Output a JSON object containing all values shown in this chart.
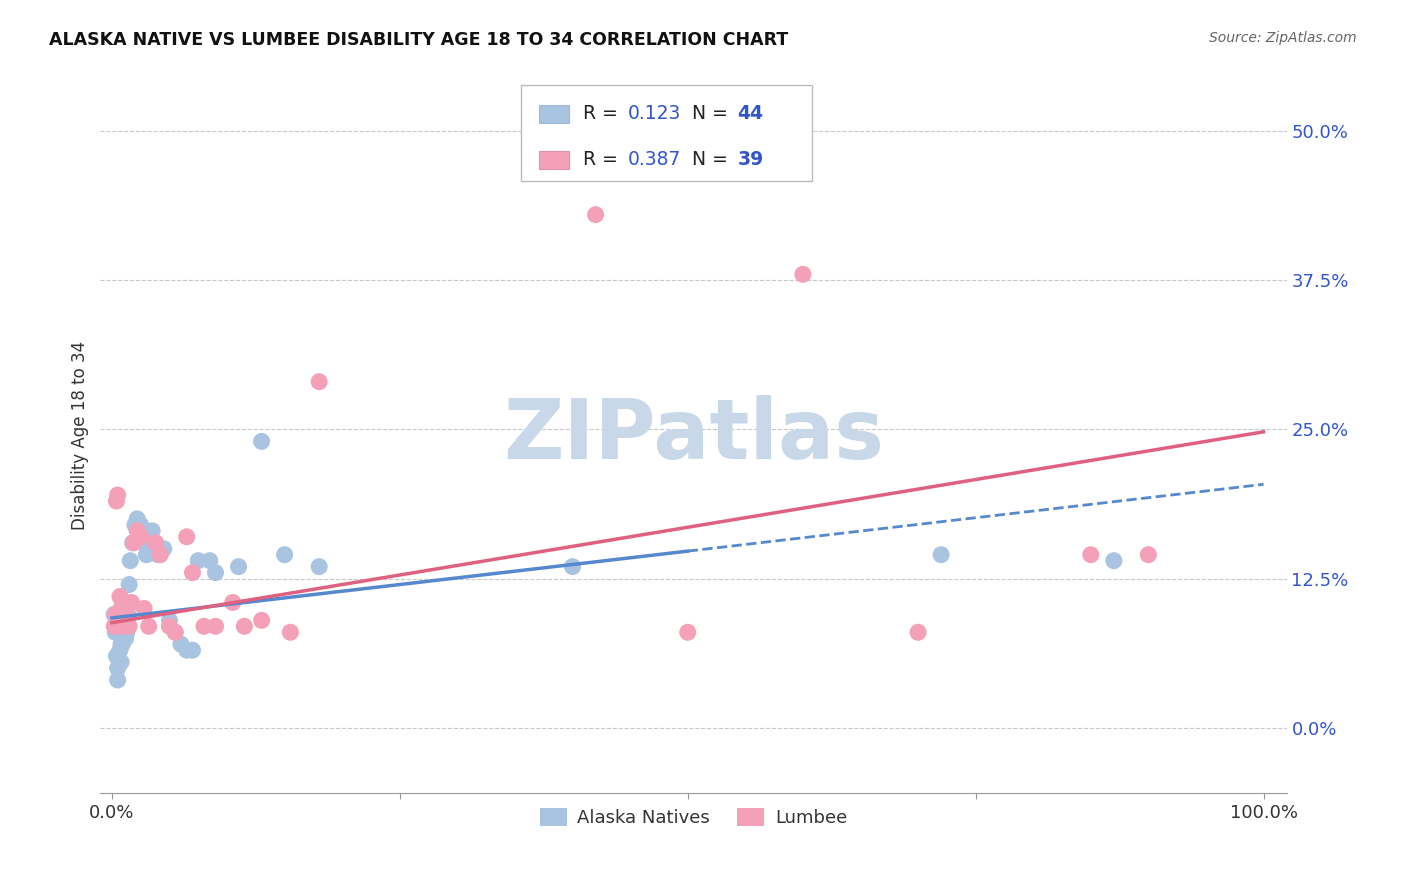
{
  "title": "ALASKA NATIVE VS LUMBEE DISABILITY AGE 18 TO 34 CORRELATION CHART",
  "source": "Source: ZipAtlas.com",
  "ylabel": "Disability Age 18 to 34",
  "ytick_values": [
    0.0,
    0.125,
    0.25,
    0.375,
    0.5
  ],
  "ytick_labels": [
    "0.0%",
    "12.5%",
    "25.0%",
    "37.5%",
    "50.0%"
  ],
  "xtick_values": [
    0.0,
    0.25,
    0.5,
    0.75,
    1.0
  ],
  "xtick_labels": [
    "0.0%",
    "",
    "",
    "",
    "100.0%"
  ],
  "xlim": [
    -0.01,
    1.02
  ],
  "ylim": [
    -0.055,
    0.545
  ],
  "alaska_R": 0.123,
  "alaska_N": 44,
  "lumbee_R": 0.387,
  "lumbee_N": 39,
  "alaska_color": "#a8c4e0",
  "lumbee_color": "#f4a0b8",
  "alaska_line_color": "#5588cc",
  "lumbee_line_color": "#e06080",
  "legend_text_color": "#3355cc",
  "alaska_x": [
    0.002,
    0.003,
    0.004,
    0.005,
    0.005,
    0.006,
    0.007,
    0.007,
    0.008,
    0.008,
    0.009,
    0.009,
    0.01,
    0.01,
    0.011,
    0.012,
    0.013,
    0.014,
    0.015,
    0.016,
    0.018,
    0.02,
    0.022,
    0.025,
    0.028,
    0.03,
    0.035,
    0.04,
    0.045,
    0.05,
    0.055,
    0.06,
    0.065,
    0.07,
    0.075,
    0.085,
    0.09,
    0.11,
    0.13,
    0.15,
    0.18,
    0.4,
    0.72,
    0.87
  ],
  "alaska_y": [
    0.095,
    0.08,
    0.06,
    0.05,
    0.04,
    0.08,
    0.09,
    0.065,
    0.07,
    0.055,
    0.09,
    0.07,
    0.1,
    0.09,
    0.085,
    0.075,
    0.08,
    0.095,
    0.12,
    0.14,
    0.155,
    0.17,
    0.175,
    0.17,
    0.155,
    0.145,
    0.165,
    0.145,
    0.15,
    0.09,
    0.08,
    0.07,
    0.065,
    0.065,
    0.14,
    0.14,
    0.13,
    0.135,
    0.24,
    0.145,
    0.135,
    0.135,
    0.145,
    0.14
  ],
  "lumbee_x": [
    0.002,
    0.003,
    0.004,
    0.005,
    0.006,
    0.007,
    0.008,
    0.009,
    0.009,
    0.01,
    0.011,
    0.012,
    0.013,
    0.015,
    0.017,
    0.019,
    0.022,
    0.025,
    0.028,
    0.032,
    0.038,
    0.042,
    0.05,
    0.055,
    0.065,
    0.07,
    0.08,
    0.09,
    0.105,
    0.115,
    0.13,
    0.155,
    0.18,
    0.42,
    0.5,
    0.6,
    0.7,
    0.85,
    0.9
  ],
  "lumbee_y": [
    0.085,
    0.095,
    0.19,
    0.195,
    0.095,
    0.11,
    0.1,
    0.09,
    0.085,
    0.095,
    0.1,
    0.095,
    0.09,
    0.085,
    0.105,
    0.155,
    0.165,
    0.16,
    0.1,
    0.085,
    0.155,
    0.145,
    0.085,
    0.08,
    0.16,
    0.13,
    0.085,
    0.085,
    0.105,
    0.085,
    0.09,
    0.08,
    0.29,
    0.43,
    0.08,
    0.38,
    0.08,
    0.145,
    0.145
  ],
  "alaska_line_x": [
    0.0,
    0.5
  ],
  "alaska_line_y": [
    0.092,
    0.148
  ],
  "lumbee_line_x": [
    0.0,
    1.0
  ],
  "lumbee_line_y": [
    0.088,
    0.248
  ],
  "background_color": "#ffffff",
  "grid_color": "#c8c8c8",
  "watermark_text": "ZIPatlas",
  "watermark_color": "#c8d8e8"
}
